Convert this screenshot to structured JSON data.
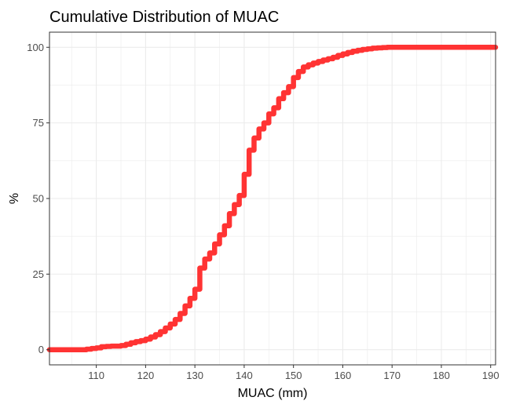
{
  "chart_data": {
    "type": "line",
    "title": "Cumulative Distribution of MUAC",
    "xlabel": "MUAC (mm)",
    "ylabel": "%",
    "xlim": [
      100.5,
      191
    ],
    "ylim": [
      -5,
      105
    ],
    "x_ticks": [
      110,
      120,
      130,
      140,
      150,
      160,
      170,
      180,
      190
    ],
    "y_ticks": [
      0,
      25,
      50,
      75,
      100
    ],
    "x_tick_labels": [
      "110",
      "120",
      "130",
      "140",
      "150",
      "160",
      "170",
      "180",
      "190"
    ],
    "y_tick_labels": [
      "0",
      "25",
      "50",
      "75",
      "100"
    ],
    "grid": true,
    "step": true,
    "series": [
      {
        "color": "#ff3333",
        "x": [
          100.5,
          108,
          109,
          110,
          111,
          112,
          113,
          115,
          116,
          117,
          118,
          119,
          120,
          121,
          122,
          123,
          124,
          125,
          126,
          127,
          128,
          129,
          130,
          131,
          132,
          133,
          134,
          135,
          136,
          137,
          138,
          139,
          140,
          141,
          142,
          143,
          144,
          145,
          146,
          147,
          148,
          149,
          150,
          151,
          152,
          153,
          154,
          155,
          156,
          157,
          158,
          159,
          160,
          161,
          162,
          163,
          164,
          165,
          166,
          167,
          168,
          169,
          170,
          185,
          186,
          188,
          191
        ],
        "y": [
          0,
          0.2,
          0.4,
          0.6,
          1,
          1.1,
          1.2,
          1.4,
          1.8,
          2.3,
          2.7,
          3.0,
          3.5,
          4.2,
          5.0,
          6.0,
          7.2,
          8.5,
          10,
          12,
          14.5,
          17,
          20,
          27,
          30,
          32,
          35,
          38,
          41,
          45,
          48,
          51,
          58,
          66,
          70,
          73,
          75,
          78,
          80,
          83,
          85,
          87,
          90,
          92,
          93.5,
          94.2,
          94.8,
          95.3,
          95.8,
          96.2,
          96.7,
          97.3,
          97.8,
          98.3,
          98.7,
          99.0,
          99.3,
          99.5,
          99.7,
          99.8,
          99.9,
          100,
          100,
          100,
          100,
          100,
          100
        ]
      }
    ]
  }
}
